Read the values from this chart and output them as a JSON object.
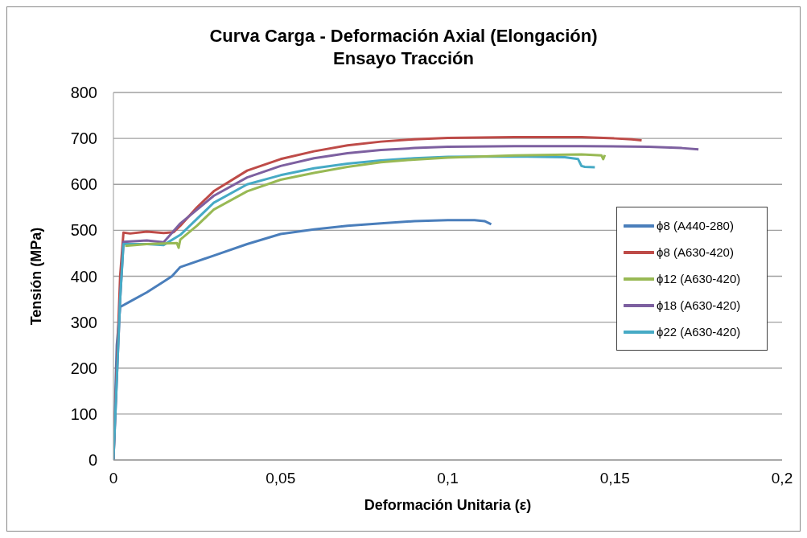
{
  "chart_data": {
    "type": "line",
    "title": "Curva Carga - Deformación Axial (Elongación)\nEnsayo Tracción",
    "xlabel": "Deformación Unitaria (ε)",
    "ylabel": "Tensión  (MPa)",
    "xlim": [
      0,
      0.2
    ],
    "xticks": [
      0,
      {
        "value": 0.05,
        "label": "0,05"
      },
      {
        "value": 0.1,
        "label": "0,1"
      },
      {
        "value": 0.15,
        "label": "0,15"
      },
      {
        "value": 0.2,
        "label": "0,2"
      }
    ],
    "ylim": [
      0,
      800
    ],
    "yticks": [
      0,
      100,
      200,
      300,
      400,
      500,
      600,
      700,
      800
    ],
    "grid": "y",
    "legend": "right",
    "marker": "none",
    "line_style": "solid",
    "series": [
      {
        "name": "ϕ8 (A440-280)",
        "color": "#4a7ebb",
        "x": [
          0,
          0.001,
          0.002,
          0.005,
          0.01,
          0.015,
          0.0175,
          0.02,
          0.03,
          0.04,
          0.05,
          0.06,
          0.07,
          0.08,
          0.09,
          0.1,
          0.108,
          0.111,
          0.113
        ],
        "values": [
          0,
          250,
          333,
          345,
          365,
          388,
          400,
          420,
          445,
          470,
          492,
          502,
          510,
          515,
          520,
          522,
          522,
          520,
          513
        ]
      },
      {
        "name": "ϕ8 (A630-420)",
        "color": "#be4b48",
        "x": [
          0,
          0.001,
          0.002,
          0.003,
          0.005,
          0.01,
          0.015,
          0.018,
          0.02,
          0.025,
          0.03,
          0.04,
          0.05,
          0.06,
          0.07,
          0.08,
          0.09,
          0.1,
          0.11,
          0.12,
          0.13,
          0.14,
          0.15,
          0.155,
          0.158
        ],
        "values": [
          0,
          200,
          400,
          495,
          493,
          497,
          494,
          496,
          510,
          550,
          585,
          630,
          655,
          672,
          685,
          693,
          698,
          701,
          702,
          703,
          703,
          703,
          700,
          698,
          696
        ]
      },
      {
        "name": "ϕ12 (A630-420)",
        "color": "#98b954",
        "x": [
          0.0035,
          0.01,
          0.019,
          0.0195,
          0.02,
          0.025,
          0.03,
          0.04,
          0.05,
          0.06,
          0.07,
          0.08,
          0.09,
          0.1,
          0.12,
          0.14,
          0.146,
          0.1465,
          0.147
        ],
        "values": [
          466,
          470,
          472,
          462,
          480,
          510,
          545,
          585,
          610,
          625,
          638,
          648,
          654,
          658,
          663,
          665,
          663,
          655,
          664
        ]
      },
      {
        "name": "ϕ18 (A630-420)",
        "color": "#7d60a0",
        "x": [
          0,
          0.002,
          0.003,
          0.01,
          0.015,
          0.017,
          0.02,
          0.03,
          0.04,
          0.05,
          0.06,
          0.07,
          0.08,
          0.09,
          0.1,
          0.12,
          0.14,
          0.16,
          0.17,
          0.175
        ],
        "values": [
          0,
          350,
          475,
          478,
          474,
          490,
          515,
          575,
          615,
          640,
          657,
          668,
          675,
          679,
          682,
          683,
          683,
          682,
          679,
          676
        ]
      },
      {
        "name": "ϕ22 (A630-420)",
        "color": "#46aac5",
        "x": [
          0,
          0.002,
          0.003,
          0.01,
          0.015,
          0.02,
          0.03,
          0.04,
          0.05,
          0.06,
          0.07,
          0.08,
          0.09,
          0.1,
          0.12,
          0.135,
          0.139,
          0.14,
          0.141,
          0.144
        ],
        "values": [
          0,
          350,
          470,
          470,
          468,
          490,
          560,
          600,
          620,
          635,
          645,
          652,
          657,
          660,
          661,
          659,
          655,
          640,
          638,
          637
        ]
      }
    ]
  }
}
